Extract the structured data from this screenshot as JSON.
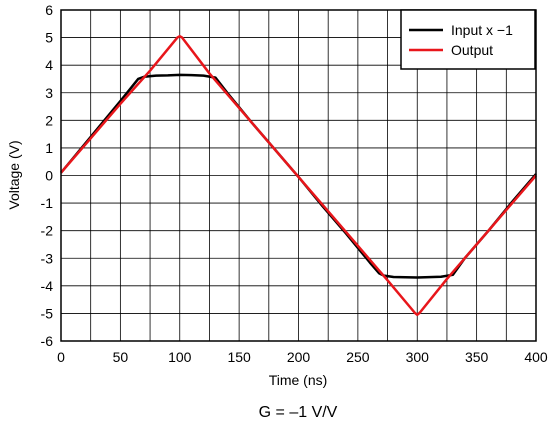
{
  "chart_data": {
    "type": "line",
    "xlabel": "Time (ns)",
    "ylabel": "Voltage (V)",
    "xlim": [
      0,
      400
    ],
    "ylim": [
      -6,
      6
    ],
    "x_ticks": [
      0,
      50,
      100,
      150,
      200,
      250,
      300,
      350,
      400
    ],
    "y_ticks": [
      -6,
      -5,
      -4,
      -3,
      -2,
      -1,
      0,
      1,
      2,
      3,
      4,
      5,
      6
    ],
    "x_minor_step": 25,
    "grid": true,
    "legend_position": "top-right",
    "caption": "G = –1 V/V",
    "series": [
      {
        "name": "Input x −1",
        "color": "#000000",
        "x": [
          0,
          25,
          50,
          65,
          70,
          80,
          90,
          100,
          110,
          120,
          130,
          140,
          160,
          180,
          200,
          220,
          240,
          260,
          268,
          272,
          280,
          300,
          320,
          330,
          340,
          360,
          380,
          400
        ],
        "y": [
          0.1,
          1.4,
          2.7,
          3.5,
          3.58,
          3.62,
          3.63,
          3.65,
          3.64,
          3.62,
          3.55,
          3.0,
          1.95,
          0.95,
          -0.05,
          -1.1,
          -2.1,
          -3.15,
          -3.55,
          -3.63,
          -3.68,
          -3.7,
          -3.67,
          -3.6,
          -3.0,
          -2.0,
          -0.95,
          0.05
        ]
      },
      {
        "name": "Output",
        "color": "#e8161b",
        "x": [
          0,
          25,
          50,
          75,
          98,
          100,
          102,
          125,
          150,
          175,
          200,
          225,
          250,
          275,
          298,
          300,
          302,
          325,
          350,
          375,
          400
        ],
        "y": [
          0.1,
          1.35,
          2.6,
          3.8,
          5.0,
          5.05,
          5.0,
          3.7,
          2.45,
          1.2,
          -0.05,
          -1.3,
          -2.55,
          -3.8,
          -4.98,
          -5.05,
          -4.98,
          -3.75,
          -2.5,
          -1.25,
          0.0
        ]
      }
    ]
  }
}
